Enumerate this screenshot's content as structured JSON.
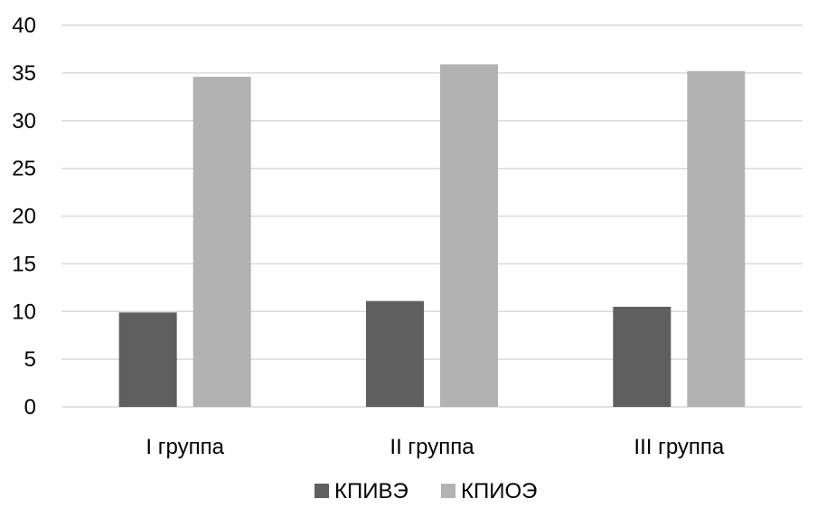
{
  "chart_data": {
    "type": "bar",
    "title": "",
    "xlabel": "",
    "ylabel": "",
    "categories": [
      "I группа",
      "II группа",
      "III группа"
    ],
    "series": [
      {
        "name": "КПИВЭ",
        "values": [
          9.9,
          11.1,
          10.5
        ],
        "color": "#5f5f5f"
      },
      {
        "name": "КПИОЭ",
        "values": [
          34.6,
          35.9,
          35.2
        ],
        "color": "#b2b2b2"
      }
    ],
    "ylim": [
      0,
      40
    ],
    "yticks": [
      0,
      5,
      10,
      15,
      20,
      25,
      30,
      35,
      40
    ],
    "grid": true,
    "legend_position": "bottom"
  }
}
